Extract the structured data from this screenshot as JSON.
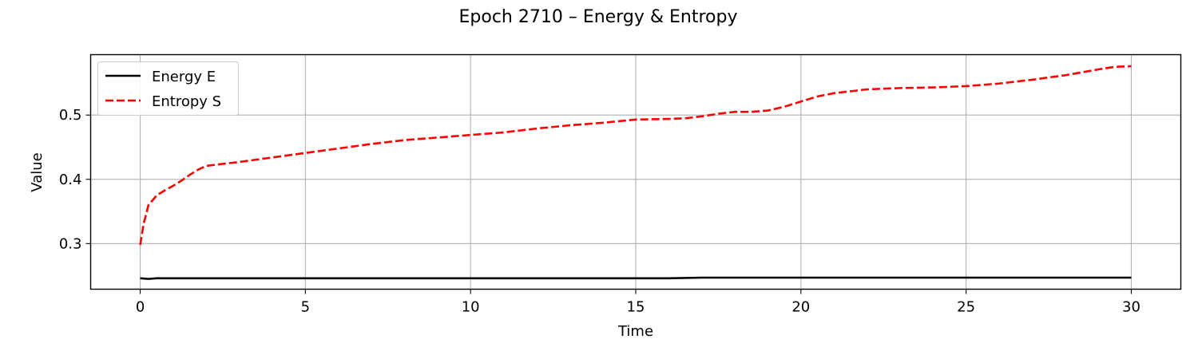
{
  "chart_data": {
    "type": "line",
    "title": "Epoch 2710 – Energy & Entropy",
    "xlabel": "Time",
    "ylabel": "Value",
    "xlim": [
      -1.5,
      31.5
    ],
    "ylim": [
      0.229,
      0.594
    ],
    "grid": true,
    "legend_position": "top-left",
    "xticks": [
      0,
      5,
      10,
      15,
      20,
      25,
      30
    ],
    "yticks": [
      0.3,
      0.4,
      0.5
    ],
    "xtick_labels": [
      "0",
      "5",
      "10",
      "15",
      "20",
      "25",
      "30"
    ],
    "ytick_labels": [
      "0.3",
      "0.4",
      "0.5"
    ],
    "series": [
      {
        "name": "Energy E",
        "color": "#000000",
        "style": "solid",
        "x": [
          0,
          0.25,
          0.5,
          0.75,
          1,
          2,
          5,
          10,
          15,
          15.5,
          16,
          17,
          18,
          20,
          25,
          30
        ],
        "y": [
          0.246,
          0.245,
          0.246,
          0.246,
          0.246,
          0.246,
          0.246,
          0.246,
          0.246,
          0.246,
          0.246,
          0.247,
          0.247,
          0.247,
          0.247,
          0.247
        ]
      },
      {
        "name": "Entropy S",
        "color": "#ff0000",
        "style": "dashed",
        "x": [
          0,
          0.1,
          0.25,
          0.5,
          0.75,
          1,
          1.25,
          1.5,
          1.75,
          2,
          2.5,
          3,
          4,
          5,
          6,
          7,
          8,
          9,
          10,
          11,
          12,
          13,
          14,
          15,
          16,
          16.5,
          17,
          17.5,
          18,
          18.5,
          19,
          19.5,
          20,
          20.5,
          21,
          22,
          23,
          24,
          25,
          26,
          27,
          28,
          29,
          29.5,
          30
        ],
        "y": [
          0.298,
          0.33,
          0.36,
          0.375,
          0.383,
          0.39,
          0.398,
          0.407,
          0.415,
          0.421,
          0.424,
          0.427,
          0.434,
          0.441,
          0.448,
          0.455,
          0.461,
          0.465,
          0.469,
          0.473,
          0.479,
          0.484,
          0.488,
          0.493,
          0.494,
          0.495,
          0.498,
          0.502,
          0.505,
          0.505,
          0.507,
          0.513,
          0.521,
          0.529,
          0.534,
          0.54,
          0.542,
          0.543,
          0.545,
          0.549,
          0.555,
          0.562,
          0.571,
          0.575,
          0.576
        ]
      }
    ]
  }
}
